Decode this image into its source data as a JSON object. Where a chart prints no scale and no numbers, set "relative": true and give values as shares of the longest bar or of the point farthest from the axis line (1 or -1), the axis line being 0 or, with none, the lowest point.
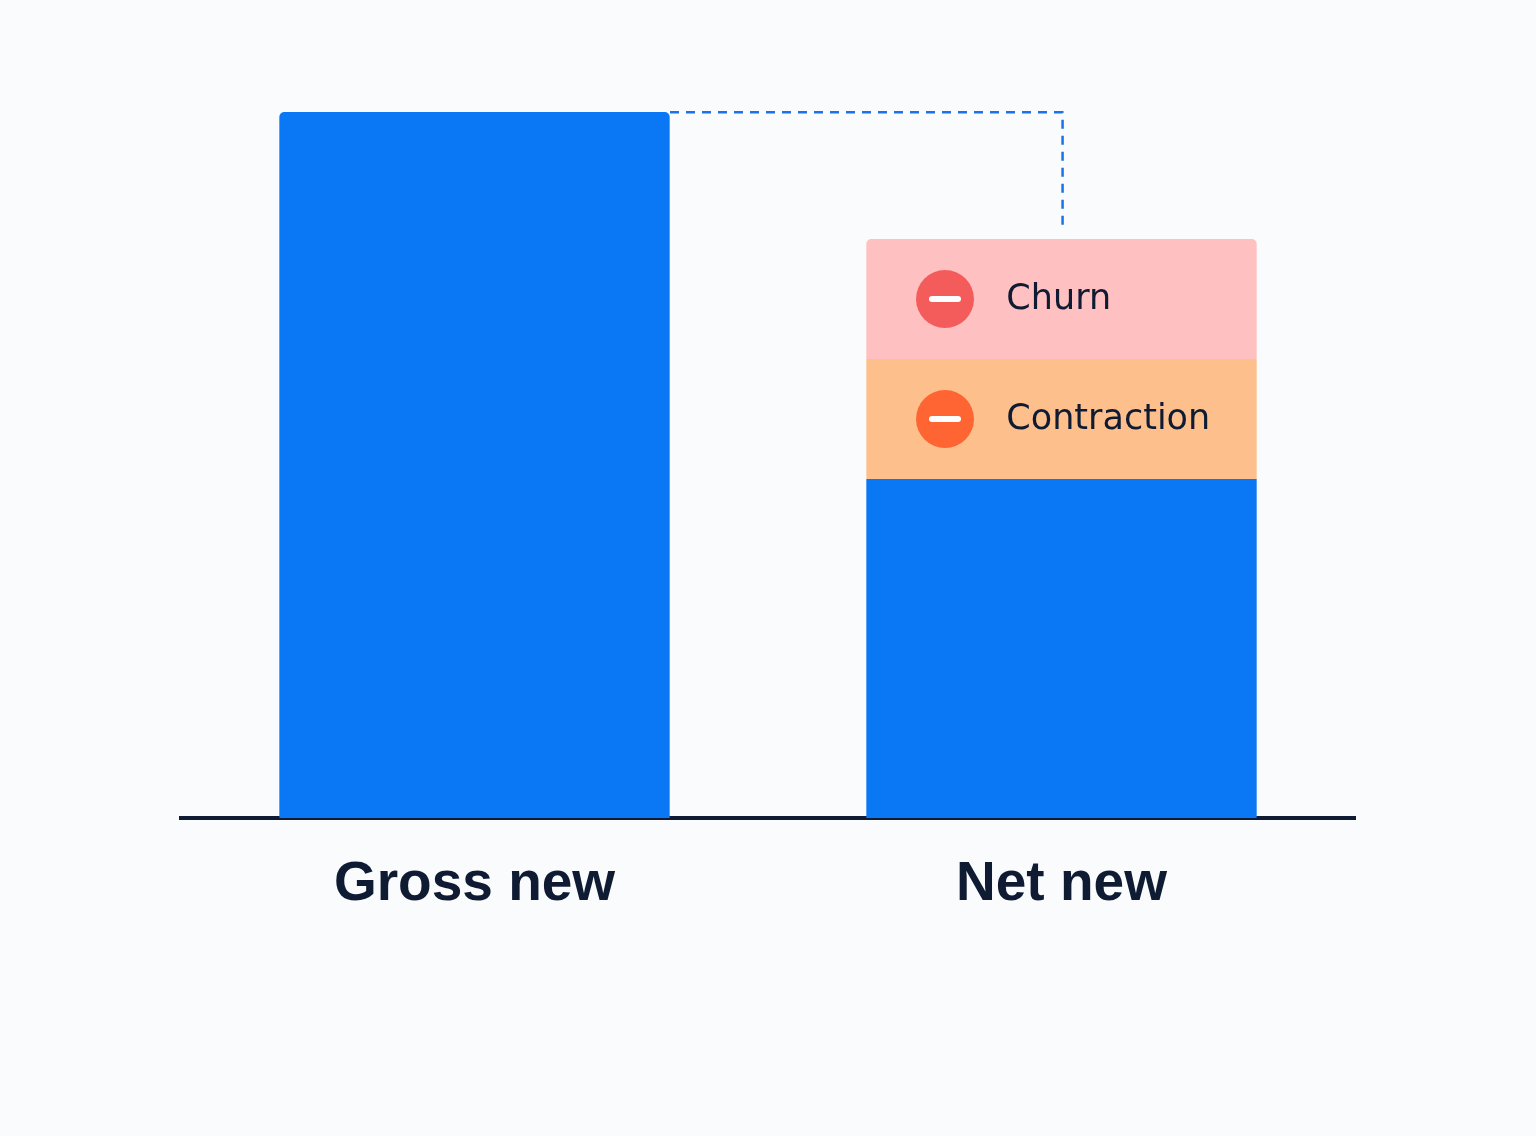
{
  "chart_data": {
    "type": "bar",
    "categories": [
      "Gross new",
      "Net new"
    ],
    "relative": true,
    "stacked": true,
    "series": [
      {
        "color": "#0a77f4",
        "values": [
          1,
          0.48
        ]
      },
      {
        "name": "Contraction",
        "color": "#fdbf8c",
        "values": [
          null,
          0.17
        ]
      },
      {
        "name": "Churn",
        "color": "#fec0c0",
        "values": [
          null,
          0.17
        ]
      }
    ]
  }
}
